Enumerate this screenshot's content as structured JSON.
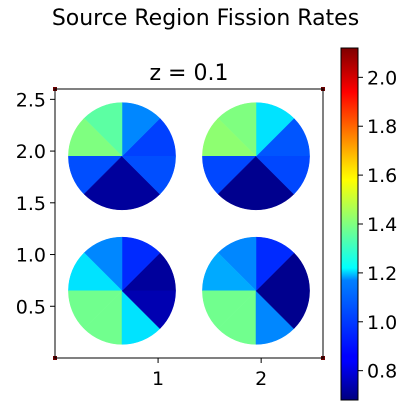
{
  "figure": {
    "title": "Source Region Fission Rates"
  },
  "chart_data": {
    "type": "heatmap",
    "title": "z = 0.1",
    "colormap": "jet",
    "xlim": [
      0,
      2.6
    ],
    "ylim": [
      0,
      2.6
    ],
    "xticks": [
      1,
      2
    ],
    "xtick_labels": [
      "1",
      "2"
    ],
    "yticks": [
      0.5,
      1.0,
      1.5,
      2.0,
      2.5
    ],
    "ytick_labels": [
      "0.5",
      "1.0",
      "1.5",
      "2.0",
      "2.5"
    ],
    "colorbar": {
      "range": [
        0.68,
        2.12
      ],
      "ticks": [
        0.8,
        1.0,
        1.2,
        1.4,
        1.6,
        1.8,
        2.0
      ],
      "tick_labels": [
        "0.8",
        "1.0",
        "1.2",
        "1.4",
        "1.6",
        "1.8",
        "2.0"
      ]
    },
    "pins": [
      {
        "cx": 0.65,
        "cy": 1.95,
        "r": 0.52,
        "sectors": [
          0.95,
          1.05,
          1.35,
          1.4,
          0.97,
          0.72,
          0.72,
          0.97
        ]
      },
      {
        "cx": 1.95,
        "cy": 1.95,
        "r": 0.52,
        "sectors": [
          0.98,
          1.18,
          1.4,
          1.42,
          0.96,
          0.7,
          0.7,
          0.96
        ]
      },
      {
        "cx": 0.65,
        "cy": 0.65,
        "r": 0.52,
        "sectors": [
          0.72,
          0.92,
          1.05,
          1.18,
          1.38,
          1.38,
          1.18,
          0.75
        ]
      },
      {
        "cx": 1.95,
        "cy": 0.65,
        "r": 0.52,
        "sectors": [
          0.7,
          0.92,
          1.05,
          1.1,
          1.38,
          1.38,
          1.05,
          0.7
        ]
      }
    ]
  }
}
